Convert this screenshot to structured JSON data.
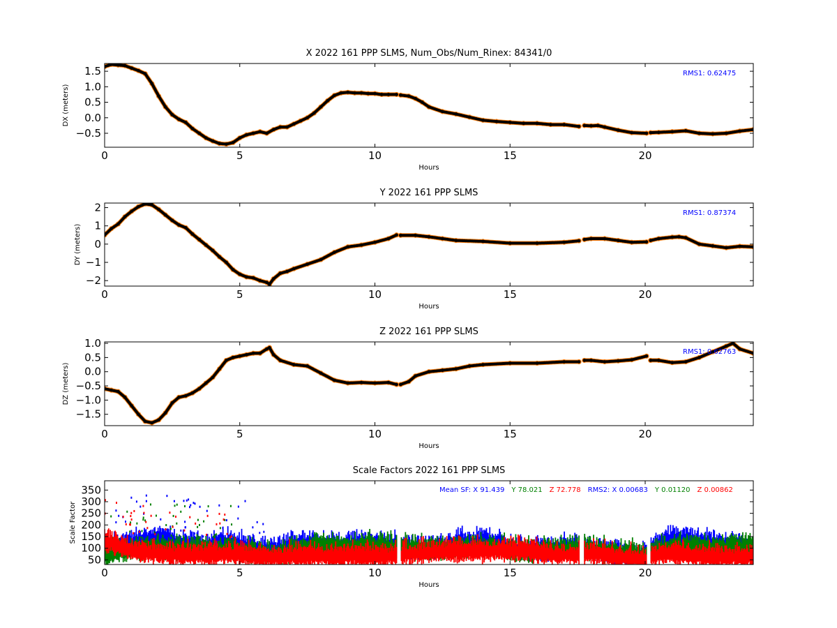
{
  "chart_data": [
    {
      "type": "scatter",
      "title": "X 2022 161 PPP  SLMS, Num_Obs/Num_Rinex: 84341/0",
      "xlabel": "Hours",
      "ylabel": "DX (meters)",
      "xlim": [
        0,
        24
      ],
      "ylim": [
        -0.95,
        1.75
      ],
      "xticks": [
        0,
        5,
        10,
        15,
        20
      ],
      "yticks": [
        -0.5,
        0.0,
        0.5,
        1.0,
        1.5
      ],
      "xtick_labels": [
        "0",
        "5",
        "10",
        "15",
        "20"
      ],
      "ytick_labels": [
        "−0.5",
        "0.0",
        "0.5",
        "1.0",
        "1.5"
      ],
      "annotation": "RMS1:  0.62475",
      "gaps": [
        [
          10.8,
          10.95
        ],
        [
          17.55,
          17.75
        ],
        [
          20.05,
          20.2
        ]
      ],
      "colors": {
        "points": "#000000",
        "band": "#ff7f0e",
        "annotation": "#0000ff"
      },
      "series": [
        {
          "x": [
            0,
            0.25,
            0.5,
            0.75,
            1.0,
            1.25,
            1.5,
            1.75,
            2.0,
            2.25,
            2.5,
            2.75,
            3.0,
            3.25,
            3.5,
            3.75,
            4.0,
            4.25,
            4.5,
            4.75,
            5.0,
            5.25,
            5.5,
            5.75,
            6.0,
            6.25,
            6.5,
            6.75,
            7.0,
            7.25,
            7.5,
            7.75,
            8.0,
            8.25,
            8.5,
            8.75,
            9.0,
            9.25,
            9.5,
            9.75,
            10.0,
            10.25,
            10.5,
            10.8,
            10.95,
            11.25,
            11.5,
            11.75,
            12.0,
            12.5,
            13.0,
            13.5,
            14.0,
            14.5,
            15.0,
            15.5,
            16.0,
            16.5,
            17.0,
            17.55,
            17.75,
            18.0,
            18.25,
            18.5,
            19.0,
            19.5,
            20.05,
            20.2,
            20.5,
            21.0,
            21.5,
            22.0,
            22.5,
            23.0,
            23.5,
            24.0
          ],
          "y": [
            1.65,
            1.72,
            1.7,
            1.68,
            1.6,
            1.52,
            1.42,
            1.1,
            0.7,
            0.35,
            0.1,
            -0.05,
            -0.15,
            -0.35,
            -0.5,
            -0.65,
            -0.75,
            -0.83,
            -0.85,
            -0.8,
            -0.65,
            -0.55,
            -0.5,
            -0.45,
            -0.5,
            -0.38,
            -0.3,
            -0.3,
            -0.2,
            -0.1,
            0.0,
            0.15,
            0.35,
            0.55,
            0.72,
            0.8,
            0.82,
            0.8,
            0.8,
            0.78,
            0.78,
            0.75,
            0.75,
            0.75,
            0.73,
            0.7,
            0.62,
            0.5,
            0.35,
            0.2,
            0.12,
            0.02,
            -0.08,
            -0.12,
            -0.15,
            -0.18,
            -0.18,
            -0.22,
            -0.22,
            -0.28,
            -0.25,
            -0.26,
            -0.25,
            -0.3,
            -0.4,
            -0.48,
            -0.5,
            -0.48,
            -0.47,
            -0.45,
            -0.42,
            -0.5,
            -0.52,
            -0.5,
            -0.43,
            -0.38
          ]
        }
      ]
    },
    {
      "type": "scatter",
      "title": "Y 2022 161 PPP  SLMS",
      "xlabel": "Hours",
      "ylabel": "DY (meters)",
      "xlim": [
        0,
        24
      ],
      "ylim": [
        -2.3,
        2.25
      ],
      "xticks": [
        0,
        5,
        10,
        15,
        20
      ],
      "yticks": [
        -2,
        -1,
        0,
        1,
        2
      ],
      "xtick_labels": [
        "0",
        "5",
        "10",
        "15",
        "20"
      ],
      "ytick_labels": [
        "−2",
        "−1",
        "0",
        "1",
        "2"
      ],
      "annotation": "RMS1:  0.87374",
      "gaps": [
        [
          10.8,
          10.95
        ],
        [
          17.55,
          17.75
        ],
        [
          20.05,
          20.2
        ]
      ],
      "colors": {
        "points": "#000000",
        "band": "#ff7f0e",
        "annotation": "#0000ff"
      },
      "series": [
        {
          "x": [
            0,
            0.25,
            0.5,
            0.75,
            1.0,
            1.25,
            1.5,
            1.75,
            2.0,
            2.25,
            2.5,
            2.75,
            3.0,
            3.25,
            3.5,
            3.75,
            4.0,
            4.25,
            4.5,
            4.75,
            5.0,
            5.25,
            5.5,
            5.75,
            6.0,
            6.1,
            6.25,
            6.5,
            6.75,
            7.0,
            7.5,
            8.0,
            8.5,
            9.0,
            9.5,
            10.0,
            10.5,
            10.8,
            10.95,
            11.5,
            12.0,
            12.5,
            13.0,
            14.0,
            15.0,
            16.0,
            17.0,
            17.55,
            17.75,
            18.0,
            18.5,
            19.0,
            19.5,
            20.05,
            20.2,
            20.5,
            21.0,
            21.25,
            21.5,
            22.0,
            22.5,
            23.0,
            23.5,
            24.0
          ],
          "y": [
            0.5,
            0.85,
            1.1,
            1.5,
            1.8,
            2.05,
            2.2,
            2.15,
            1.9,
            1.6,
            1.3,
            1.05,
            0.9,
            0.55,
            0.25,
            -0.05,
            -0.35,
            -0.7,
            -1.0,
            -1.4,
            -1.65,
            -1.8,
            -1.85,
            -2.0,
            -2.1,
            -2.2,
            -1.9,
            -1.6,
            -1.5,
            -1.35,
            -1.1,
            -0.85,
            -0.45,
            -0.15,
            -0.05,
            0.1,
            0.3,
            0.5,
            0.48,
            0.48,
            0.4,
            0.3,
            0.2,
            0.15,
            0.05,
            0.05,
            0.1,
            0.18,
            0.25,
            0.3,
            0.3,
            0.2,
            0.1,
            0.12,
            0.2,
            0.3,
            0.38,
            0.4,
            0.35,
            0.0,
            -0.1,
            -0.2,
            -0.12,
            -0.15
          ]
        }
      ]
    },
    {
      "type": "scatter",
      "title": "Z 2022 161 PPP  SLMS",
      "xlabel": "Hours",
      "ylabel": "DZ (meters)",
      "xlim": [
        0,
        24
      ],
      "ylim": [
        -1.9,
        1.05
      ],
      "xticks": [
        0,
        5,
        10,
        15,
        20
      ],
      "yticks": [
        -1.5,
        -1.0,
        -0.5,
        0.0,
        0.5,
        1.0
      ],
      "xtick_labels": [
        "0",
        "5",
        "10",
        "15",
        "20"
      ],
      "ytick_labels": [
        "−1.5",
        "−1.0",
        "−0.5",
        "0.0",
        "0.5",
        "1.0"
      ],
      "annotation": "RMS1:  0.62763",
      "gaps": [
        [
          10.8,
          10.95
        ],
        [
          17.55,
          17.75
        ],
        [
          20.05,
          20.2
        ]
      ],
      "colors": {
        "points": "#000000",
        "band": "#ff7f0e",
        "annotation": "#0000ff"
      },
      "series": [
        {
          "x": [
            0,
            0.25,
            0.5,
            0.75,
            1.0,
            1.25,
            1.5,
            1.75,
            2.0,
            2.25,
            2.5,
            2.75,
            3.0,
            3.25,
            3.5,
            3.75,
            4.0,
            4.25,
            4.5,
            4.75,
            5.0,
            5.25,
            5.5,
            5.75,
            6.0,
            6.1,
            6.25,
            6.5,
            7.0,
            7.5,
            8.0,
            8.5,
            9.0,
            9.5,
            10.0,
            10.5,
            10.8,
            10.95,
            11.25,
            11.5,
            12.0,
            12.5,
            13.0,
            13.5,
            14.0,
            15.0,
            16.0,
            17.0,
            17.55,
            17.75,
            18.0,
            18.5,
            19.0,
            19.5,
            20.05,
            20.2,
            20.5,
            21.0,
            21.5,
            22.0,
            22.5,
            23.0,
            23.25,
            23.5,
            24.0
          ],
          "y": [
            -0.6,
            -0.65,
            -0.7,
            -0.9,
            -1.2,
            -1.5,
            -1.75,
            -1.8,
            -1.7,
            -1.45,
            -1.1,
            -0.9,
            -0.85,
            -0.75,
            -0.6,
            -0.4,
            -0.2,
            0.1,
            0.4,
            0.5,
            0.55,
            0.6,
            0.65,
            0.65,
            0.8,
            0.85,
            0.6,
            0.4,
            0.25,
            0.2,
            -0.05,
            -0.3,
            -0.4,
            -0.38,
            -0.4,
            -0.38,
            -0.45,
            -0.45,
            -0.35,
            -0.15,
            0.0,
            0.05,
            0.1,
            0.2,
            0.25,
            0.3,
            0.3,
            0.35,
            0.35,
            0.4,
            0.4,
            0.35,
            0.38,
            0.42,
            0.55,
            0.4,
            0.4,
            0.32,
            0.35,
            0.5,
            0.7,
            0.9,
            1.0,
            0.8,
            0.65
          ]
        }
      ]
    },
    {
      "type": "scatter",
      "title": "Scale Factors 2022 161 PPP  SLMS",
      "xlabel": "Hours",
      "ylabel": "Scale Factor",
      "xlim": [
        0,
        24
      ],
      "ylim": [
        30,
        390
      ],
      "xticks": [
        0,
        5,
        10,
        15,
        20
      ],
      "yticks": [
        50,
        100,
        150,
        200,
        250,
        300,
        350
      ],
      "xtick_labels": [
        "0",
        "5",
        "10",
        "15",
        "20"
      ],
      "ytick_labels": [
        "50",
        "100",
        "150",
        "200",
        "250",
        "300",
        "350"
      ],
      "gaps": [
        [
          10.8,
          10.95
        ],
        [
          17.55,
          17.75
        ],
        [
          20.05,
          20.2
        ]
      ],
      "annotation_parts": [
        {
          "text": "Mean SF: X  91.439",
          "color": "#0000ff"
        },
        {
          "text": "Y  78.021",
          "color": "#008000"
        },
        {
          "text": "Z  72.778",
          "color": "#ff0000"
        },
        {
          "text": "RMS2: X  0.00683",
          "color": "#0000ff"
        },
        {
          "text": "Y  0.01120",
          "color": "#008000"
        },
        {
          "text": "Z  0.00862",
          "color": "#ff0000"
        }
      ],
      "series": [
        {
          "name": "X",
          "color": "#0000ff",
          "x": [
            0,
            0.5,
            1.0,
            1.5,
            2.0,
            2.5,
            3.0,
            3.5,
            4.0,
            4.5,
            5.0,
            5.5,
            6.0,
            6.5,
            7.0,
            7.5,
            8.0,
            8.5,
            9.0,
            9.5,
            10.0,
            10.5,
            11.0,
            11.5,
            12.0,
            12.5,
            13.0,
            13.5,
            14.0,
            14.5,
            15.0,
            15.5,
            16.0,
            16.5,
            17.0,
            17.5,
            18.0,
            18.5,
            19.0,
            19.5,
            20.0,
            20.5,
            21.0,
            21.5,
            22.0,
            22.5,
            23.0,
            23.5,
            24.0
          ],
          "y": [
            100,
            110,
            120,
            130,
            140,
            125,
            110,
            110,
            110,
            125,
            115,
            95,
            80,
            90,
            115,
            125,
            110,
            105,
            110,
            120,
            115,
            110,
            105,
            100,
            95,
            105,
            120,
            125,
            130,
            120,
            95,
            85,
            90,
            95,
            100,
            100,
            95,
            80,
            75,
            70,
            65,
            120,
            140,
            135,
            125,
            115,
            110,
            100,
            95
          ]
        },
        {
          "name": "Y",
          "color": "#008000",
          "x": [
            0,
            0.5,
            1.0,
            1.5,
            2.0,
            2.5,
            3.0,
            3.5,
            4.0,
            4.5,
            5.0,
            5.5,
            6.0,
            6.5,
            7.0,
            7.5,
            8.0,
            8.5,
            9.0,
            9.5,
            10.0,
            10.5,
            11.0,
            11.5,
            12.0,
            12.5,
            13.0,
            13.5,
            14.0,
            14.5,
            15.0,
            15.5,
            16.0,
            16.5,
            17.0,
            17.5,
            18.0,
            18.5,
            19.0,
            19.5,
            20.0,
            20.5,
            21.0,
            21.5,
            22.0,
            22.5,
            23.0,
            23.5,
            24.0
          ],
          "y": [
            70,
            80,
            90,
            95,
            95,
            95,
            90,
            90,
            90,
            90,
            85,
            80,
            70,
            75,
            85,
            100,
            110,
            100,
            100,
            105,
            110,
            105,
            100,
            95,
            90,
            95,
            100,
            100,
            105,
            100,
            90,
            85,
            85,
            90,
            95,
            95,
            90,
            85,
            80,
            75,
            70,
            90,
            100,
            105,
            105,
            100,
            100,
            105,
            100
          ]
        },
        {
          "name": "Z",
          "color": "#ff0000",
          "x": [
            0,
            0.5,
            1.0,
            1.5,
            2.0,
            2.5,
            3.0,
            3.5,
            4.0,
            4.5,
            5.0,
            5.5,
            6.0,
            6.5,
            7.0,
            7.5,
            8.0,
            8.5,
            9.0,
            9.5,
            10.0,
            10.5,
            11.0,
            11.5,
            12.0,
            12.5,
            13.0,
            13.5,
            14.0,
            14.5,
            15.0,
            15.5,
            16.0,
            16.5,
            17.0,
            17.5,
            18.0,
            18.5,
            19.0,
            19.5,
            20.0,
            20.5,
            21.0,
            21.5,
            22.0,
            22.5,
            23.0,
            23.5,
            24.0
          ],
          "y": [
            130,
            110,
            90,
            80,
            75,
            70,
            70,
            70,
            70,
            75,
            70,
            65,
            60,
            60,
            65,
            65,
            65,
            60,
            65,
            65,
            65,
            65,
            70,
            75,
            80,
            80,
            85,
            85,
            85,
            85,
            90,
            90,
            80,
            70,
            70,
            70,
            75,
            70,
            60,
            55,
            50,
            70,
            75,
            70,
            65,
            60,
            60,
            60,
            60
          ]
        }
      ]
    }
  ]
}
